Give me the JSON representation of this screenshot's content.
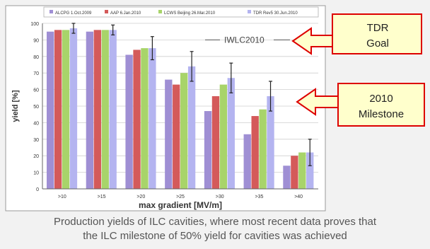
{
  "chart_data": {
    "type": "bar",
    "ylabel": "yield [%]",
    "xlabel": "max gradient [MV/m]",
    "ylim": [
      0,
      100
    ],
    "yticks": [
      0,
      10,
      20,
      30,
      40,
      50,
      60,
      70,
      80,
      90,
      100
    ],
    "categories": [
      ">10",
      ">15",
      ">20",
      ">25",
      ">30",
      ">35",
      ">40"
    ],
    "series": [
      {
        "name": "ALCPG 1.Oct.2009",
        "color": "#9f8fd4",
        "values": [
          95,
          95,
          81,
          66,
          47,
          33,
          14
        ]
      },
      {
        "name": "AAP 6.Jan.2010",
        "color": "#d45a5a",
        "values": [
          96,
          96,
          84,
          63,
          56,
          44,
          20
        ]
      },
      {
        "name": "LCWS Beijing 26.Mar.2010",
        "color": "#a8d46a",
        "values": [
          96,
          96,
          85,
          70,
          63,
          48,
          22
        ]
      },
      {
        "name": "TDR Rev5 30.Jun.2010",
        "color": "#b4b4f0",
        "values": [
          97,
          96,
          85,
          74,
          67,
          56,
          22
        ]
      }
    ],
    "error_bars_on_last_series": [
      3,
      3,
      7,
      9,
      9,
      9,
      8
    ],
    "reference_line": {
      "label": "IWLC2010",
      "value": 90
    },
    "legend_position": "top",
    "grid": true,
    "annotations": [
      {
        "text_lines": [
          "TDR",
          "Goal"
        ]
      },
      {
        "text_lines": [
          "2010",
          "Milestone"
        ]
      }
    ]
  },
  "caption": {
    "line1": "Production yields of ILC cavities, where most recent data proves that",
    "line2": "the ILC milestone of 50% yield for cavities was achieved"
  }
}
